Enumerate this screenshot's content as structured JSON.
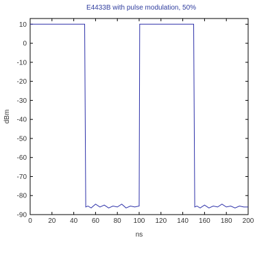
{
  "chart_data": {
    "type": "line",
    "title": "E4433B with pulse modulation, 50%",
    "xlabel": "ns",
    "ylabel": "dBm",
    "xlim": [
      0,
      200
    ],
    "ylim": [
      -90,
      13
    ],
    "x_ticks": [
      "0",
      "20",
      "40",
      "60",
      "80",
      "100",
      "120",
      "140",
      "160",
      "180",
      "200"
    ],
    "y_ticks": [
      "10",
      "0",
      "-10",
      "-20",
      "-30",
      "-40",
      "-50",
      "-60",
      "-70",
      "-80",
      "-90"
    ],
    "grid": false,
    "series": [
      {
        "color": "#2b2fa8",
        "x": [
          0,
          50,
          51,
          53,
          56,
          60,
          64,
          68,
          72,
          76,
          80,
          84,
          88,
          92,
          96,
          100,
          100.5,
          150,
          151,
          153,
          156,
          160,
          164,
          168,
          172,
          176,
          180,
          184,
          188,
          192,
          196,
          200
        ],
        "y": [
          10,
          10,
          -86,
          -85.5,
          -86.5,
          -84.5,
          -86,
          -85,
          -86.5,
          -85.5,
          -86,
          -84.5,
          -86.5,
          -85.5,
          -86,
          -85.5,
          10,
          10,
          -86,
          -85.5,
          -86.5,
          -85,
          -86.5,
          -85.5,
          -86,
          -84.5,
          -86,
          -85.5,
          -86.5,
          -85.5,
          -86,
          -86
        ]
      }
    ]
  }
}
